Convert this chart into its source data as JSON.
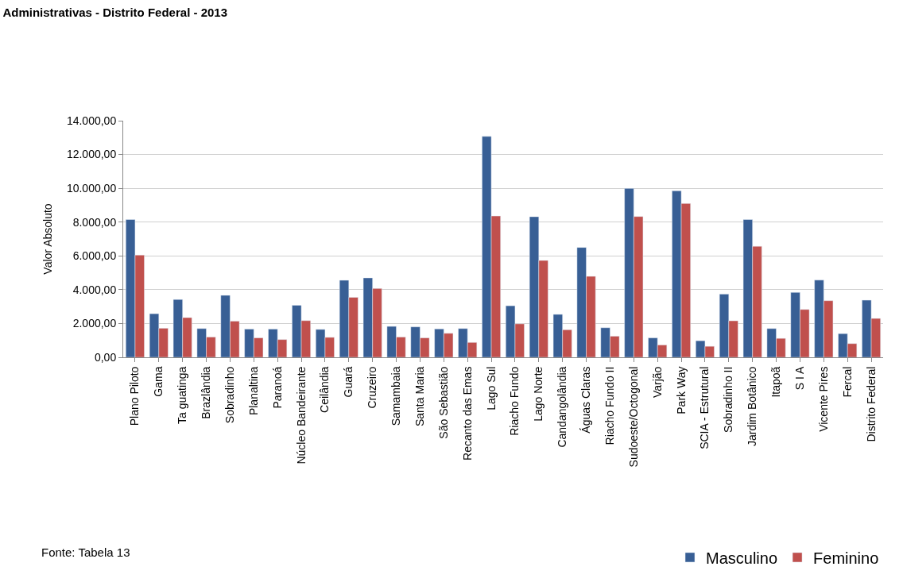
{
  "chart_data": {
    "type": "bar",
    "title": "Administrativas - Distrito Federal - 2013",
    "ylabel": "Valor Absoluto",
    "categories": [
      "Plano Piloto",
      "Gama",
      "Ta guatinga",
      "Brazlândia",
      "Sobradinho",
      "Planaltina",
      "Paranoá",
      "Núcleo Bandeirante",
      "Ceilândia",
      "Guará",
      "Cruzeiro",
      "Samambaia",
      "Santa Maria",
      "São Sebastião",
      "Recanto das Emas",
      "Lago Sul",
      "Riacho Fundo",
      "Lago Norte",
      "Candangolândia",
      "Águas Claras",
      "Riacho Fundo II",
      "Sudoeste/Octogonal",
      "Varjão",
      "Park Way",
      "SCIA - Estrutural",
      "Sobradinho II",
      "Jardim Botânico",
      "Itapoã",
      "S I A",
      "Vicente Pires",
      "Fercal",
      "Distrito Federal"
    ],
    "series": [
      {
        "name": "Masculino",
        "color": "#385f95",
        "values": [
          8150,
          2580,
          3420,
          1700,
          3670,
          1670,
          1670,
          3080,
          1650,
          4560,
          4700,
          1830,
          1800,
          1680,
          1700,
          13070,
          3050,
          8320,
          2540,
          6500,
          1750,
          9990,
          1150,
          9850,
          980,
          3740,
          8150,
          1700,
          3840,
          4570,
          1400,
          3380
        ]
      },
      {
        "name": "Feminino",
        "color": "#c0504d",
        "values": [
          6050,
          1720,
          2350,
          1200,
          2140,
          1150,
          1050,
          2170,
          1180,
          3550,
          4070,
          1200,
          1150,
          1420,
          880,
          8360,
          1980,
          5730,
          1630,
          4790,
          1250,
          8330,
          730,
          9100,
          650,
          2160,
          6570,
          1120,
          2830,
          3350,
          810,
          2300
        ]
      }
    ],
    "ylim": [
      0,
      14000
    ],
    "yticks": [
      {
        "value": 0,
        "label": "0,00"
      },
      {
        "value": 2000,
        "label": "2.000,00"
      },
      {
        "value": 4000,
        "label": "4.000,00"
      },
      {
        "value": 6000,
        "label": "6.000,00"
      },
      {
        "value": 8000,
        "label": "8.000,00"
      },
      {
        "value": 10000,
        "label": "10.000,00"
      },
      {
        "value": 12000,
        "label": "12.000,00"
      },
      {
        "value": 14000,
        "label": "14.000,00"
      }
    ],
    "grid": "y",
    "legend": "bottom right",
    "annotations": [
      "Fonte: Tabela 13"
    ]
  }
}
